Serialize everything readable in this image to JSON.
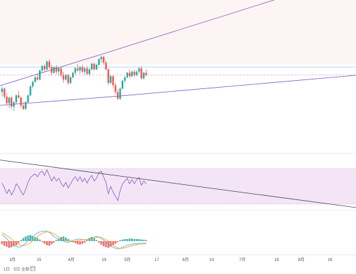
{
  "colors": {
    "up": "#26a69a",
    "down": "#ef5350",
    "channel": "#7e57c2",
    "hline": "#90caf9",
    "price_dash": "#f48fb1",
    "rsi": "#7e57c2",
    "rsi_band": "#f3e5f5",
    "trend": "#37474f",
    "macd": "#42a5f5",
    "signal": "#ff9800",
    "top_zone": "#fdf5f3",
    "sep": "#dfe3ea"
  },
  "toolbar": {
    "items": [
      "1日",
      "5日",
      "全部"
    ],
    "icon": "calendar-icon"
  },
  "chart_data": [
    {
      "type": "candlestick",
      "pane": "price",
      "candles": [
        [
          99.0,
          101.5,
          97.0,
          100.5
        ],
        [
          100.5,
          101.0,
          96.0,
          97.0
        ],
        [
          97.0,
          98.5,
          93.0,
          94.0
        ],
        [
          94.0,
          97.0,
          92.0,
          96.5
        ],
        [
          96.5,
          97.5,
          91.5,
          92.5
        ],
        [
          92.5,
          95.0,
          90.5,
          94.5
        ],
        [
          94.5,
          98.0,
          93.5,
          97.5
        ],
        [
          97.5,
          99.5,
          96.0,
          96.5
        ],
        [
          96.5,
          97.0,
          92.0,
          93.0
        ],
        [
          93.0,
          94.5,
          91.0,
          91.5
        ],
        [
          91.5,
          95.0,
          91.0,
          94.5
        ],
        [
          94.5,
          98.0,
          94.0,
          97.5
        ],
        [
          97.5,
          102.0,
          97.0,
          101.5
        ],
        [
          101.5,
          104.0,
          100.5,
          103.5
        ],
        [
          103.5,
          106.0,
          103.0,
          105.5
        ],
        [
          105.5,
          107.0,
          104.0,
          104.5
        ],
        [
          104.5,
          109.0,
          104.0,
          108.5
        ],
        [
          108.5,
          111.0,
          107.5,
          110.5
        ],
        [
          110.5,
          111.5,
          108.0,
          109.0
        ],
        [
          109.0,
          113.0,
          108.5,
          112.5
        ],
        [
          112.5,
          113.5,
          109.0,
          110.0
        ],
        [
          110.0,
          111.0,
          106.5,
          107.5
        ],
        [
          107.5,
          110.5,
          107.0,
          110.0
        ],
        [
          110.0,
          111.0,
          107.0,
          108.0
        ],
        [
          108.0,
          110.0,
          106.0,
          109.5
        ],
        [
          109.5,
          110.0,
          105.5,
          106.5
        ],
        [
          106.5,
          108.0,
          103.0,
          104.5
        ],
        [
          104.5,
          107.0,
          104.0,
          106.5
        ],
        [
          106.5,
          107.0,
          102.0,
          103.0
        ],
        [
          103.0,
          106.0,
          102.5,
          105.5
        ],
        [
          105.5,
          108.0,
          105.0,
          107.5
        ],
        [
          107.5,
          110.0,
          106.5,
          109.5
        ],
        [
          109.5,
          111.5,
          108.0,
          108.5
        ],
        [
          108.5,
          110.5,
          107.0,
          110.0
        ],
        [
          110.0,
          111.0,
          107.5,
          108.0
        ],
        [
          108.0,
          110.0,
          106.5,
          109.5
        ],
        [
          109.5,
          110.5,
          106.5,
          107.0
        ],
        [
          107.0,
          109.5,
          106.0,
          109.0
        ],
        [
          109.0,
          112.0,
          108.5,
          111.5
        ],
        [
          111.5,
          112.0,
          108.5,
          109.0
        ],
        [
          109.0,
          111.5,
          108.5,
          111.0
        ],
        [
          111.0,
          114.0,
          110.5,
          113.5
        ],
        [
          113.5,
          115.0,
          112.0,
          114.5
        ],
        [
          114.5,
          115.0,
          111.0,
          112.0
        ],
        [
          112.0,
          113.0,
          108.5,
          109.0
        ],
        [
          109.0,
          109.5,
          102.0,
          103.0
        ],
        [
          103.0,
          106.5,
          102.5,
          106.0
        ],
        [
          106.0,
          106.5,
          101.0,
          102.0
        ],
        [
          102.0,
          103.0,
          98.0,
          99.0
        ],
        [
          99.0,
          100.5,
          95.5,
          96.0
        ],
        [
          96.0,
          101.0,
          95.5,
          100.5
        ],
        [
          100.5,
          104.5,
          100.0,
          104.0
        ],
        [
          104.0,
          106.0,
          103.0,
          105.5
        ],
        [
          105.5,
          108.0,
          105.0,
          107.5
        ],
        [
          107.5,
          109.0,
          105.0,
          106.0
        ],
        [
          106.0,
          108.5,
          105.5,
          108.0
        ],
        [
          108.0,
          109.0,
          105.5,
          106.5
        ],
        [
          106.5,
          108.5,
          106.0,
          108.0
        ],
        [
          108.0,
          110.0,
          107.0,
          109.5
        ],
        [
          109.5,
          110.5,
          104.5,
          105.0
        ],
        [
          105.0,
          108.0,
          104.5,
          107.5
        ],
        [
          107.5,
          109.0,
          106.0,
          106.5
        ]
      ],
      "channel_upper": [
        [
          0,
          101.8
        ],
        [
          140,
          114.9
        ],
        [
          520,
          151.1
        ]
      ],
      "channel_lower": [
        [
          0,
          93.1
        ],
        [
          170,
          97.1
        ],
        [
          520,
          106.4
        ]
      ],
      "horizontal_lines": [
        110.0
      ],
      "last_price": 106.5
    },
    {
      "type": "line",
      "pane": "rsi",
      "band": [
        30,
        70
      ],
      "values": [
        55,
        48,
        40,
        46,
        38,
        44,
        54,
        50,
        43,
        38,
        46,
        56,
        63,
        66,
        68,
        64,
        70,
        72,
        66,
        74,
        66,
        58,
        64,
        58,
        62,
        55,
        50,
        56,
        48,
        54,
        60,
        64,
        58,
        64,
        57,
        62,
        55,
        62,
        66,
        58,
        62,
        70,
        72,
        64,
        56,
        40,
        50,
        42,
        36,
        30,
        44,
        54,
        58,
        62,
        54,
        60,
        54,
        60,
        63,
        52,
        58,
        54
      ],
      "trendline": [
        [
          0,
          88
        ],
        [
          520,
          20
        ]
      ]
    },
    {
      "type": "bar+line",
      "pane": "macd",
      "histogram": [
        -0.6,
        -0.9,
        -1.1,
        -1.3,
        -1.2,
        -1.0,
        -0.8,
        -0.4,
        0.2,
        0.6,
        0.9,
        1.1,
        1.2,
        1.0,
        0.8,
        0.6,
        0.3,
        -0.2,
        -0.5,
        -0.8,
        -0.9,
        -0.6,
        -0.3,
        0.2,
        0.5,
        0.8,
        0.9,
        0.7,
        0.4,
        0.1,
        -0.2,
        -0.4,
        -0.6,
        -0.7,
        -0.5,
        -0.3,
        0.2,
        0.6,
        0.8,
        0.5,
        0.2,
        -0.3,
        -0.7,
        -1.0,
        -1.2,
        -1.3,
        -1.1,
        -0.8,
        -0.5,
        -0.2,
        0.2,
        0.3,
        0.4,
        0.4,
        0.5,
        0.5,
        0.4,
        0.4,
        0.4,
        0.3,
        0.3,
        0.2
      ],
      "macd": [
        1.3,
        0.9,
        0.5,
        0.0,
        -0.4,
        -0.8,
        -1.0,
        -1.2,
        -1.1,
        -0.8,
        -0.4,
        0.1,
        0.5,
        0.9,
        1.3,
        1.6,
        1.8,
        1.9,
        2.0,
        1.9,
        1.7,
        1.3,
        0.9,
        0.6,
        0.4,
        0.2,
        0.0,
        -0.2,
        -0.2,
        -0.1,
        0.1,
        0.3,
        0.4,
        0.4,
        0.3,
        0.2,
        0.3,
        0.5,
        0.7,
        0.8,
        0.9,
        0.8,
        0.5,
        0.2,
        -0.1,
        -0.5,
        -0.9,
        -1.2,
        -1.4,
        -1.5,
        -1.4,
        -1.2,
        -1.0,
        -0.8,
        -0.7,
        -0.6,
        -0.5,
        -0.5,
        -0.4,
        -0.4,
        -0.4,
        -0.4
      ],
      "signal": [
        1.6,
        1.4,
        1.1,
        0.8,
        0.4,
        0.0,
        -0.3,
        -0.6,
        -0.8,
        -0.9,
        -0.8,
        -0.6,
        -0.3,
        0.1,
        0.5,
        0.9,
        1.2,
        1.5,
        1.7,
        1.8,
        1.8,
        1.6,
        1.4,
        1.1,
        0.8,
        0.5,
        0.3,
        0.1,
        0.0,
        -0.1,
        -0.1,
        0.0,
        0.1,
        0.2,
        0.3,
        0.3,
        0.3,
        0.4,
        0.5,
        0.6,
        0.7,
        0.8,
        0.7,
        0.5,
        0.3,
        0.0,
        -0.4,
        -0.8,
        -1.1,
        -1.3,
        -1.4,
        -1.4,
        -1.3,
        -1.2,
        -1.0,
        -0.9,
        -0.8,
        -0.7,
        -0.6,
        -0.6,
        -0.5,
        -0.5
      ]
    },
    {
      "type": "x-axis",
      "ticks": [
        "3月",
        "15",
        "4月",
        "19",
        "5月",
        "17",
        "6月",
        "14",
        "7月",
        "19",
        "8月",
        "16"
      ],
      "tick_x": [
        18,
        57,
        104,
        152,
        186,
        229,
        271,
        309,
        354,
        404,
        440,
        482
      ]
    }
  ]
}
